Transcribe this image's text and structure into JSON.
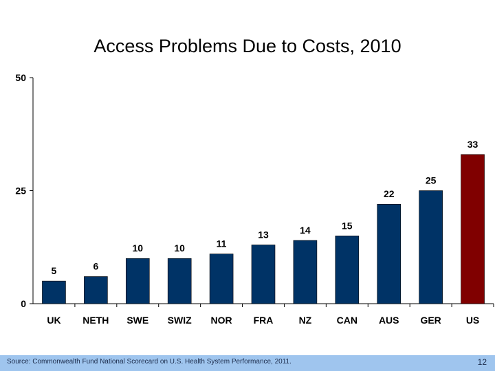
{
  "slide": {
    "title": "Access Problems Due to Costs, 2010",
    "source": "Source: Commonwealth Fund National Scorecard on U.S. Health System Performance, 2011.",
    "page_number": "12"
  },
  "chart_data": {
    "type": "bar",
    "title": "Access Problems Due to Costs, 2010",
    "xlabel": "",
    "ylabel": "",
    "categories": [
      "UK",
      "NETH",
      "SWE",
      "SWIZ",
      "NOR",
      "FRA",
      "NZ",
      "CAN",
      "AUS",
      "GER",
      "US"
    ],
    "values": [
      5,
      6,
      10,
      10,
      11,
      13,
      14,
      15,
      22,
      25,
      33
    ],
    "data_labels": [
      "5",
      "6",
      "10",
      "10",
      "11",
      "13",
      "14",
      "15",
      "22",
      "25",
      "33"
    ],
    "ylim": [
      0,
      50
    ],
    "yticks": [
      0,
      25,
      50
    ],
    "ytick_labels": [
      "0",
      "25",
      "50"
    ],
    "grid": false,
    "legend": "none",
    "colors": {
      "default": "#003366",
      "highlight": "#800000",
      "highlight_category": "US"
    }
  }
}
